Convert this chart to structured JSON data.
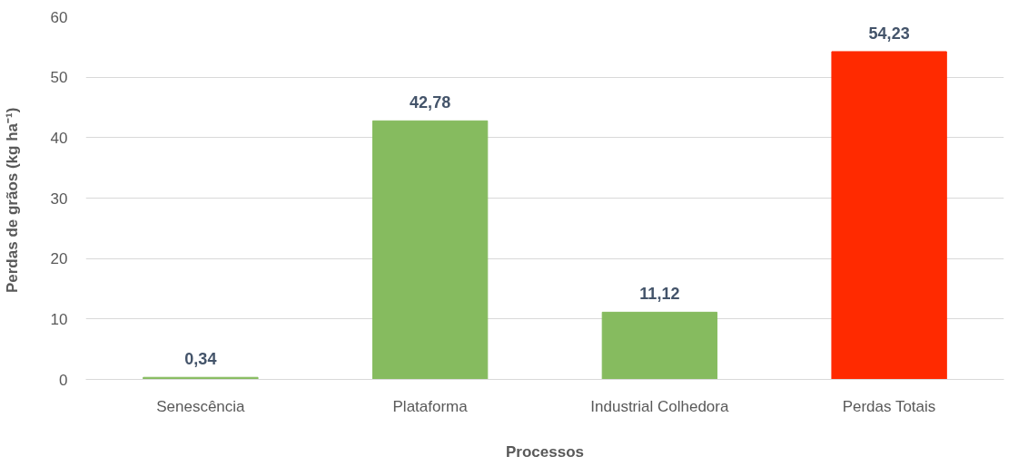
{
  "chart_data": {
    "type": "bar",
    "xlabel": "Processos",
    "ylabel": "Perdas de grãos  (kg ha⁻¹)",
    "categories": [
      "Senescência",
      "Plataforma",
      "Industrial Colhedora",
      "Perdas Totais"
    ],
    "values": [
      0.34,
      42.78,
      11.12,
      54.23
    ],
    "colors": [
      "#86bb5f",
      "#86bb5f",
      "#86bb5f",
      "#ff2a00"
    ],
    "value_labels": [
      "0,34",
      "42,78",
      "11,12",
      "54,23"
    ],
    "ylim": [
      0,
      60
    ],
    "yticks": [
      0,
      10,
      20,
      30,
      40,
      50,
      60
    ],
    "grid": "y"
  }
}
